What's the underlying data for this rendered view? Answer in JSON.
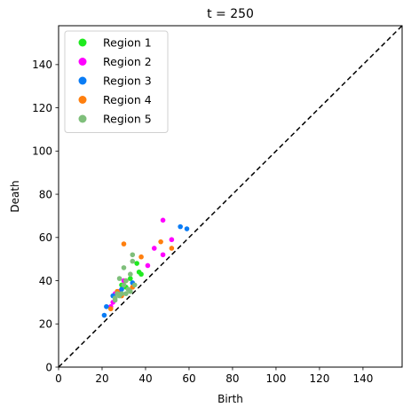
{
  "chart_data": {
    "type": "scatter",
    "title": "t = 250",
    "xlabel": "Birth",
    "ylabel": "Death",
    "xlim": [
      0,
      158
    ],
    "ylim": [
      0,
      158
    ],
    "xticks": [
      0,
      20,
      40,
      60,
      80,
      100,
      120,
      140
    ],
    "yticks": [
      0,
      20,
      40,
      60,
      80,
      100,
      120,
      140
    ],
    "diagonal": "dashed y = x",
    "legend_position": "top-left",
    "series": [
      {
        "name": "Region 1",
        "color": "#1fea1f",
        "points": [
          [
            36,
            48
          ],
          [
            37,
            44
          ],
          [
            38,
            43
          ],
          [
            33,
            41
          ],
          [
            29,
            38
          ],
          [
            31,
            37
          ],
          [
            27,
            35
          ]
        ]
      },
      {
        "name": "Region 2",
        "color": "#ff00ff",
        "points": [
          [
            48,
            68
          ],
          [
            52,
            59
          ],
          [
            44,
            55
          ],
          [
            48,
            52
          ],
          [
            41,
            47
          ],
          [
            30,
            40
          ],
          [
            26,
            34
          ],
          [
            24,
            28
          ],
          [
            25,
            30
          ],
          [
            28,
            35
          ]
        ]
      },
      {
        "name": "Region 3",
        "color": "#0a7cf5",
        "points": [
          [
            56,
            65
          ],
          [
            59,
            64
          ],
          [
            22,
            28
          ],
          [
            21,
            24
          ],
          [
            34,
            39
          ],
          [
            25,
            33
          ],
          [
            29,
            36
          ]
        ]
      },
      {
        "name": "Region 4",
        "color": "#ff7f0e",
        "points": [
          [
            30,
            57
          ],
          [
            47,
            58
          ],
          [
            38,
            51
          ],
          [
            52,
            55
          ],
          [
            34,
            37
          ],
          [
            27,
            35
          ],
          [
            24,
            27
          ],
          [
            29,
            33
          ],
          [
            31,
            40
          ]
        ]
      },
      {
        "name": "Region 5",
        "color": "#7fbf7b",
        "points": [
          [
            34,
            52
          ],
          [
            34,
            49
          ],
          [
            30,
            46
          ],
          [
            33,
            43
          ],
          [
            28,
            41
          ],
          [
            31,
            40
          ],
          [
            32,
            36
          ],
          [
            29,
            34
          ],
          [
            27,
            34
          ],
          [
            26,
            31
          ],
          [
            30,
            38
          ],
          [
            33,
            35
          ],
          [
            28,
            33
          ],
          [
            31,
            34
          ],
          [
            26,
            32
          ],
          [
            35,
            38
          ]
        ]
      }
    ]
  }
}
